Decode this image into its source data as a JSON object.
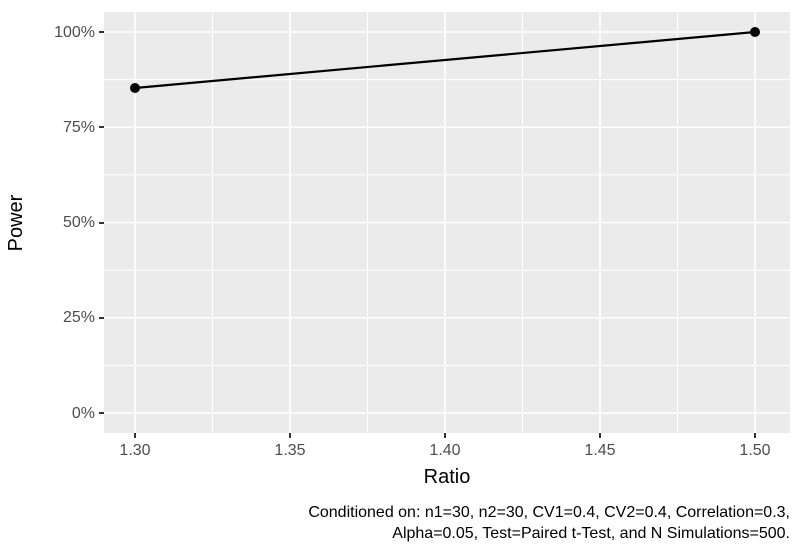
{
  "chart_data": {
    "type": "line",
    "title": "",
    "xlabel": "Ratio",
    "ylabel": "Power",
    "x": [
      1.3,
      1.5
    ],
    "series": [
      {
        "name": "Power",
        "values_percent": [
          85.3,
          100.0
        ]
      }
    ],
    "x_ticks": {
      "values": [
        1.3,
        1.35,
        1.4,
        1.45,
        1.5
      ],
      "labels": [
        "1.30",
        "1.35",
        "1.40",
        "1.45",
        "1.50"
      ]
    },
    "y_ticks": {
      "values": [
        0,
        25,
        50,
        75,
        100
      ],
      "labels": [
        "0%",
        "25%",
        "50%",
        "75%",
        "100%"
      ]
    },
    "x_minor": [
      1.325,
      1.375,
      1.425,
      1.475
    ],
    "y_minor_percent": [
      12.5,
      37.5,
      62.5,
      87.5
    ],
    "xlim": [
      1.29,
      1.51
    ],
    "ylim_percent": [
      -5,
      105
    ],
    "grid": "major and minor white gridlines on gray panel",
    "legend_position": "none",
    "caption_line1": "Conditioned on: n1=30, n2=30, CV1=0.4, CV2=0.4, Correlation=0.3,",
    "caption_line2": "Alpha=0.05, Test=Paired t-Test, and N Simulations=500."
  },
  "colors": {
    "panel_background": "#EBEBEB",
    "grid_line": "#FFFFFF",
    "tick_label": "#4D4D4D",
    "tick_mark": "#333333",
    "axis_title": "#000000",
    "caption_text": "#000000",
    "data_line": "#000000",
    "data_point": "#000000"
  }
}
